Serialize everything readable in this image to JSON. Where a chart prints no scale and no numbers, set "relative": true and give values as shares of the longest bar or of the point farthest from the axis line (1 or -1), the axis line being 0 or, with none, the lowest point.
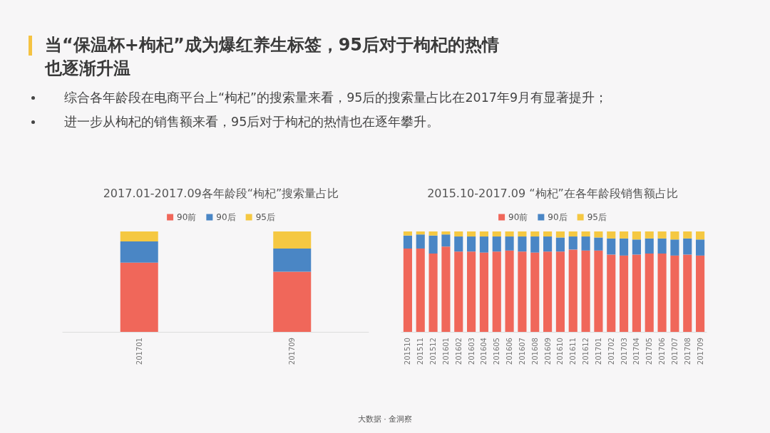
{
  "chart_data": [
    {
      "type": "other",
      "title": "当“保温杯+枸杞”成为爆红养生标签，95后对于枸杞的热情也逐渐升温",
      "annotations": [
        "综合各年龄段在电商平台上“枸杞”的搜索量来看，95后的搜索量占比在2017年9月有显著提升；",
        "进一步从枸杞的销售额来看，95后对于枸杞的热情也在逐年攀升。",
        "大数据 · 金洞察"
      ]
    },
    {
      "type": "bar",
      "title": "2017.01-2017.09各年龄段“枸杞”搜索量占比",
      "stacked": true,
      "relative": true,
      "legend": "top",
      "categories": [
        "201701",
        "201709"
      ],
      "series": [
        {
          "name": "90前",
          "color": "#f0675a",
          "values": [
            0.69,
            0.6
          ]
        },
        {
          "name": "90后",
          "color": "#4a86c5",
          "values": [
            0.21,
            0.23
          ]
        },
        {
          "name": "95后",
          "color": "#f5c842",
          "values": [
            0.1,
            0.17
          ]
        }
      ]
    },
    {
      "type": "bar",
      "title": "2015.10-2017.09 “枸杞”在各年龄段销售额占比",
      "stacked": true,
      "relative": true,
      "legend": "top",
      "categories": [
        "201510",
        "201511",
        "201512",
        "201601",
        "201602",
        "201603",
        "201604",
        "201605",
        "201606",
        "201607",
        "201608",
        "201609",
        "201610",
        "201611",
        "201612",
        "201701",
        "201702",
        "201703",
        "201704",
        "201705",
        "201706",
        "201707",
        "201708",
        "201709"
      ],
      "series": [
        {
          "name": "90前",
          "color": "#f0675a",
          "values": [
            0.83,
            0.83,
            0.78,
            0.85,
            0.8,
            0.8,
            0.79,
            0.8,
            0.81,
            0.8,
            0.79,
            0.8,
            0.8,
            0.82,
            0.81,
            0.81,
            0.77,
            0.76,
            0.77,
            0.78,
            0.78,
            0.76,
            0.77,
            0.76
          ]
        },
        {
          "name": "90后",
          "color": "#4a86c5",
          "values": [
            0.13,
            0.14,
            0.18,
            0.12,
            0.15,
            0.15,
            0.16,
            0.15,
            0.14,
            0.15,
            0.16,
            0.15,
            0.14,
            0.13,
            0.14,
            0.13,
            0.16,
            0.17,
            0.15,
            0.15,
            0.15,
            0.16,
            0.16,
            0.16
          ]
        },
        {
          "name": "95后",
          "color": "#f5c842",
          "values": [
            0.04,
            0.03,
            0.04,
            0.03,
            0.05,
            0.05,
            0.05,
            0.05,
            0.05,
            0.05,
            0.05,
            0.05,
            0.06,
            0.05,
            0.05,
            0.06,
            0.07,
            0.07,
            0.08,
            0.07,
            0.07,
            0.08,
            0.07,
            0.08
          ]
        }
      ]
    }
  ]
}
